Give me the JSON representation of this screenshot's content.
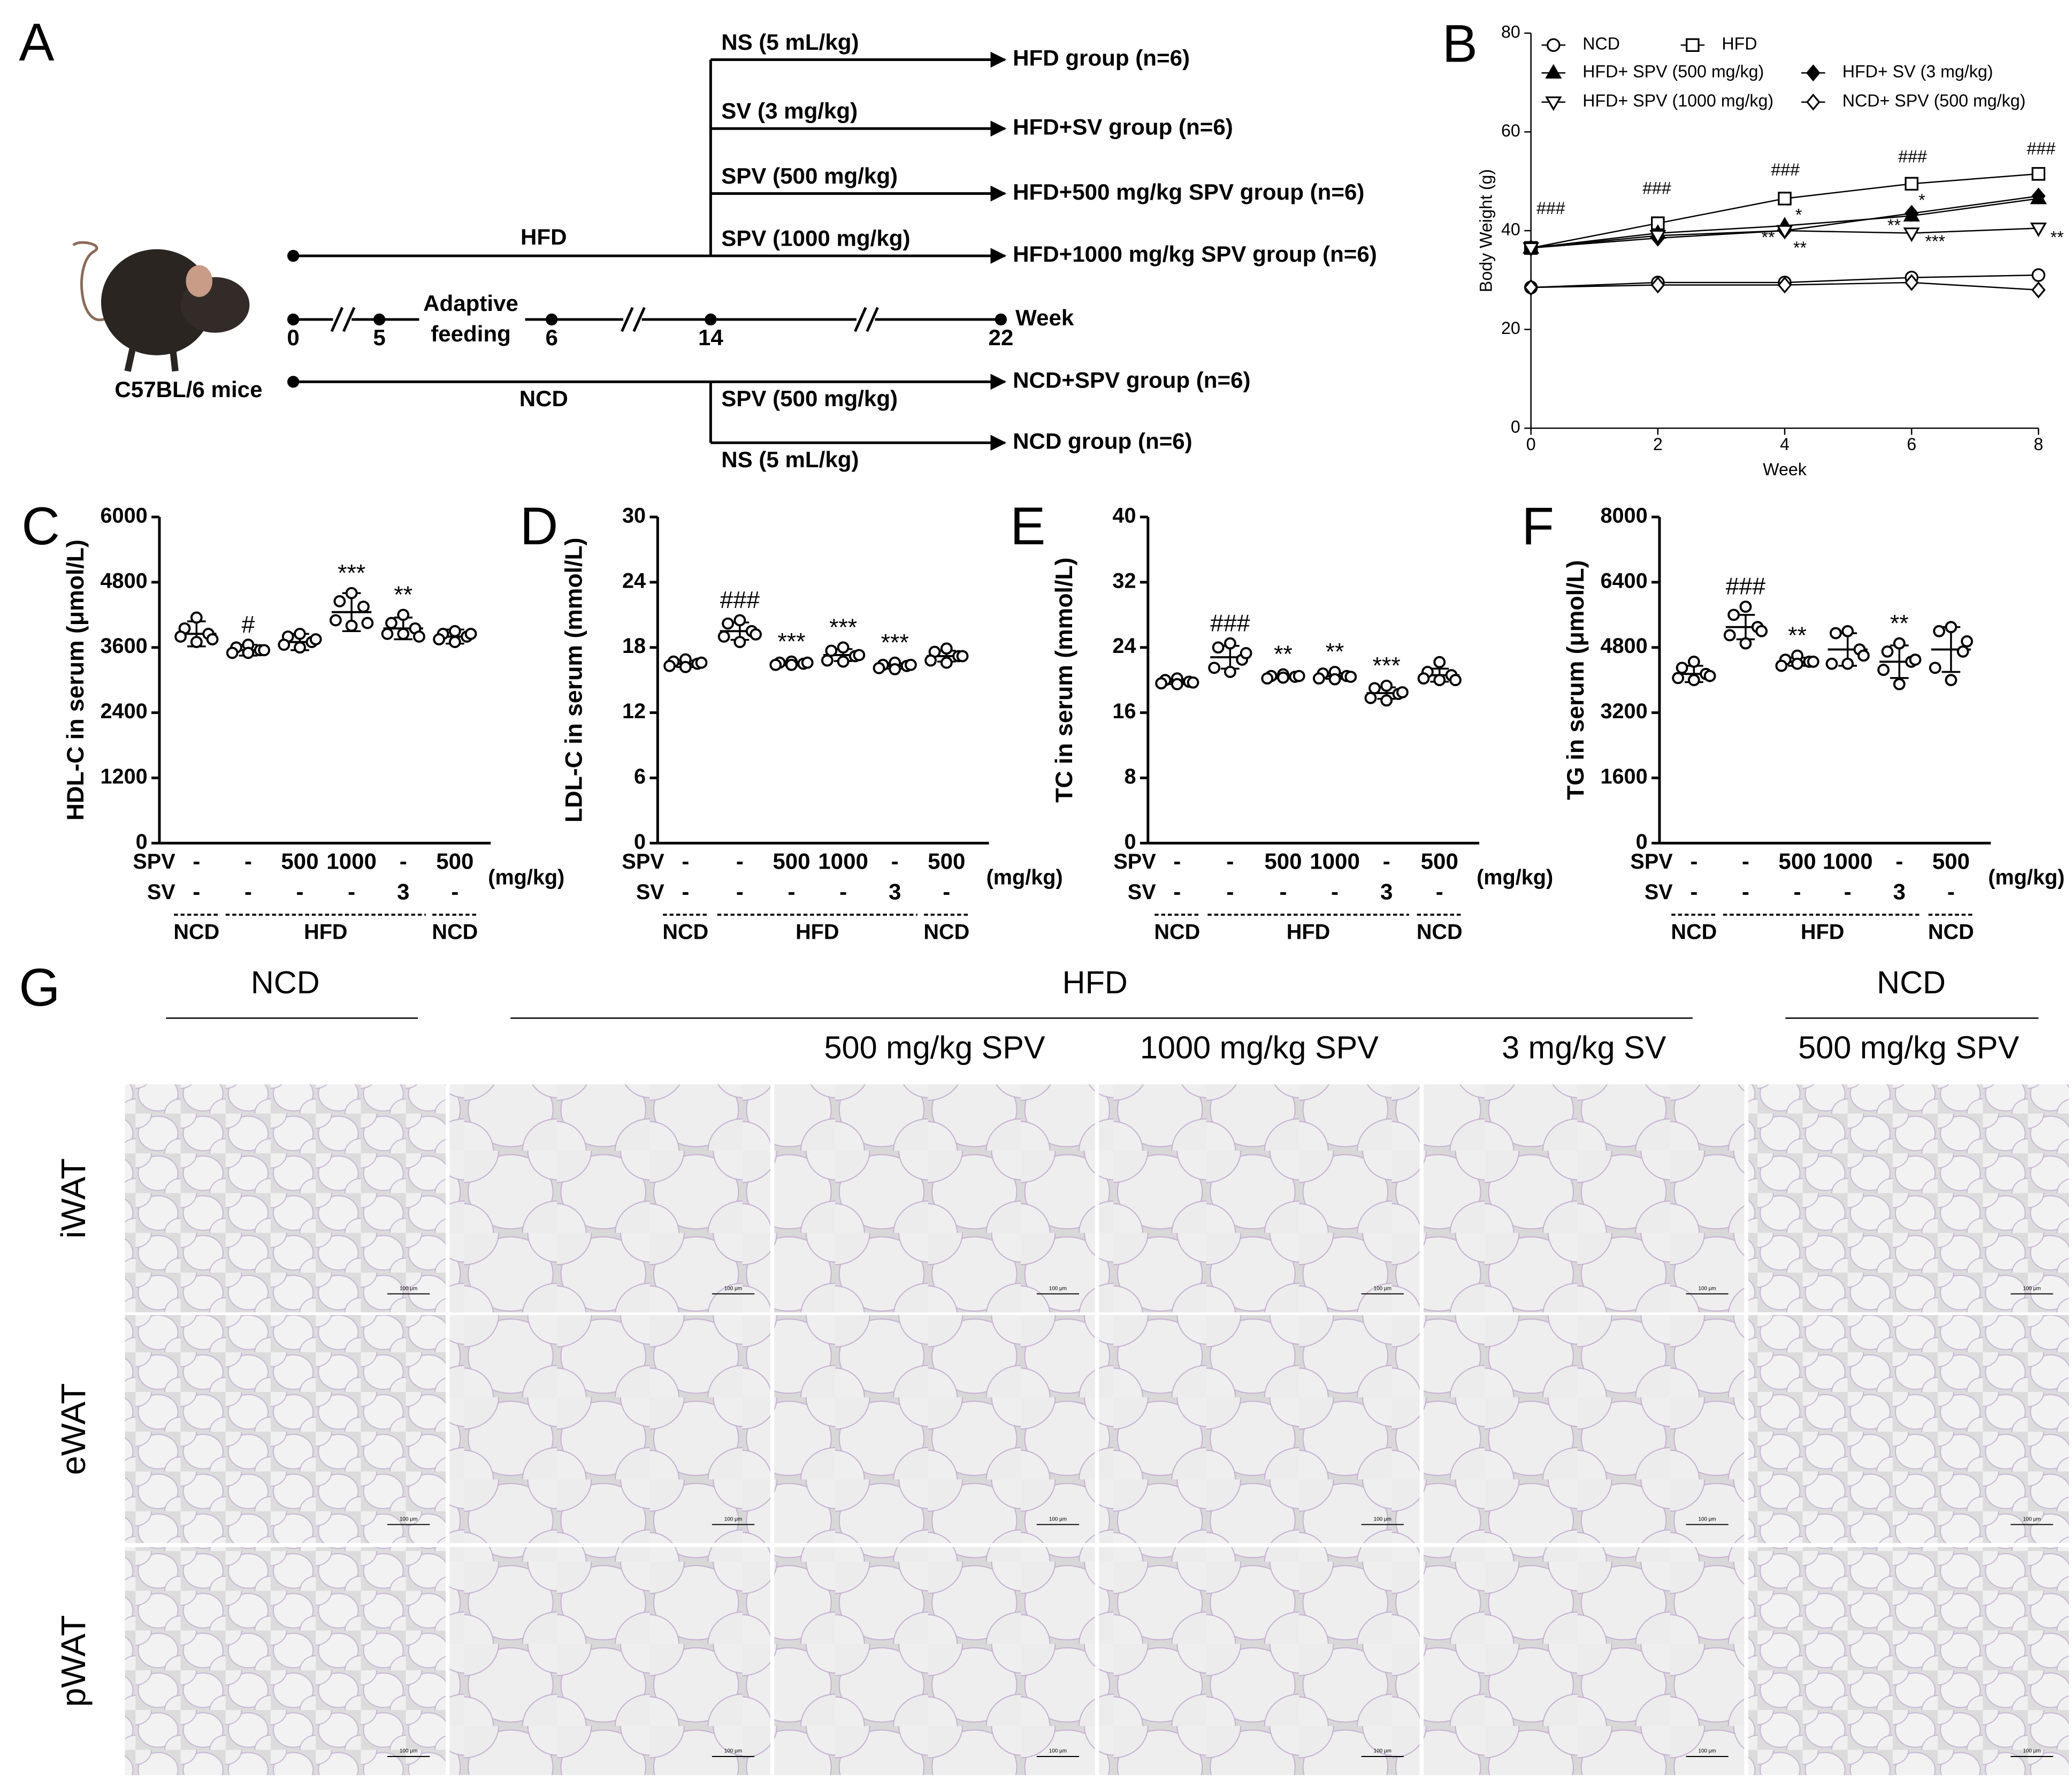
{
  "diagram": {
    "label": "A",
    "mouse": "C57BL/6 mice",
    "hfd_line": {
      "label": "HFD",
      "branches": [
        {
          "treatment": "NS (5 mL/kg)",
          "group": "HFD group (n=6)"
        },
        {
          "treatment": "SV (3 mg/kg)",
          "group": "HFD+SV group (n=6)"
        },
        {
          "treatment": "SPV (500 mg/kg)",
          "group": "HFD+500 mg/kg SPV group (n=6)"
        },
        {
          "treatment": "SPV (1000 mg/kg)",
          "group": "HFD+1000 mg/kg SPV group (n=6)"
        }
      ]
    },
    "timeline": {
      "ticks": [
        0,
        5,
        6,
        14,
        22
      ],
      "unit": "Week",
      "phase": [
        "Adaptive",
        "feeding"
      ]
    },
    "ncd_line": {
      "label": "NCD",
      "branches": [
        {
          "treatment": "SPV (500 mg/kg)",
          "group": "NCD+SPV group (n=6)"
        },
        {
          "treatment": "NS (5 mL/kg)",
          "group": "NCD group (n=6)"
        }
      ]
    }
  },
  "chart_data": [
    {
      "type": "line",
      "panel": "B",
      "y_label": "Body Weight (g)",
      "x_label": "Week",
      "x": [
        0,
        2,
        4,
        6,
        8
      ],
      "xlim": [
        0,
        8
      ],
      "xticks": [
        0,
        2,
        4,
        6,
        8
      ],
      "ylim": [
        0,
        80
      ],
      "yticks": [
        0,
        20,
        40,
        60,
        80
      ],
      "color": "#000000",
      "series": [
        {
          "name": "NCD",
          "marker": "circle",
          "filled": false,
          "values": [
            28.5,
            29.5,
            29.5,
            30.5,
            31
          ]
        },
        {
          "name": "HFD",
          "marker": "square",
          "filled": false,
          "values": [
            36.5,
            41.5,
            46.5,
            49.5,
            51.5
          ]
        },
        {
          "name": "HFD+ SPV (500 mg/kg)",
          "marker": "triangle-up",
          "filled": true,
          "values": [
            36.5,
            39.5,
            41,
            43,
            46.5
          ]
        },
        {
          "name": "HFD+ SV (3 mg/kg)",
          "marker": "diamond",
          "filled": true,
          "values": [
            36.5,
            38.5,
            40,
            43.5,
            47
          ]
        },
        {
          "name": "HFD+ SPV (1000 mg/kg)",
          "marker": "triangle-down",
          "filled": false,
          "values": [
            36.5,
            39,
            40,
            39.5,
            40.5
          ]
        },
        {
          "name": "NCD+ SPV (500 mg/kg)",
          "marker": "diamond",
          "filled": false,
          "values": [
            28.5,
            29,
            29,
            29.5,
            28
          ]
        }
      ],
      "annotations": [
        "###",
        "###",
        "###",
        "###",
        "###",
        "*",
        "**",
        "**",
        "*",
        "**",
        "***",
        "**"
      ]
    },
    {
      "type": "dot",
      "panel": "C",
      "y_label": "HDL-C in serum (μmol/L)",
      "ylim": [
        0,
        6000
      ],
      "yticks": [
        0,
        1200,
        2400,
        3600,
        4800,
        6000
      ],
      "points": [
        [
          4150,
          3950,
          3850,
          3800,
          3700,
          3750
        ],
        [
          3650,
          3600,
          3550,
          3500,
          3500,
          3550
        ],
        [
          3850,
          3800,
          3700,
          3650,
          3600,
          3750
        ],
        [
          4600,
          4450,
          4350,
          4100,
          4000,
          4050
        ],
        [
          4200,
          4050,
          3950,
          3850,
          3850,
          3800
        ],
        [
          3900,
          3850,
          3800,
          3750,
          3700,
          3850
        ]
      ],
      "means": [
        3850,
        3550,
        3700,
        4250,
        3950,
        3800
      ],
      "sds": [
        230,
        100,
        150,
        350,
        200,
        130
      ],
      "significance": [
        null,
        "#",
        null,
        "***",
        "**",
        null
      ],
      "spv_label": "SPV",
      "spv": [
        "-",
        "-",
        500,
        1000,
        "-",
        500
      ],
      "sv_label": "SV",
      "sv": [
        "-",
        "-",
        "-",
        "-",
        3,
        "-"
      ],
      "unit": "(mg/kg)",
      "groups": [
        "NCD",
        "HFD",
        "NCD"
      ]
    },
    {
      "type": "dot",
      "panel": "D",
      "y_label": "LDL-C in serum (mmol/L)",
      "ylim": [
        0,
        30
      ],
      "yticks": [
        0,
        6,
        12,
        18,
        24,
        30
      ],
      "points": [
        [
          16.9,
          16.7,
          16.5,
          16.3,
          16.2,
          16.6
        ],
        [
          20.5,
          20.2,
          19.5,
          19.0,
          18.5,
          19.2
        ],
        [
          16.7,
          16.6,
          16.5,
          16.4,
          16.4,
          16.6
        ],
        [
          18.0,
          17.7,
          17.2,
          16.8,
          16.7,
          17.3
        ],
        [
          16.6,
          16.4,
          16.3,
          16.1,
          16.0,
          16.4
        ],
        [
          17.9,
          17.6,
          17.2,
          16.8,
          16.6,
          17.2
        ]
      ],
      "means": [
        16.5,
        19.5,
        16.5,
        17.3,
        16.3,
        17.2
      ],
      "sds": [
        0.3,
        0.8,
        0.15,
        0.55,
        0.25,
        0.5
      ],
      "significance": [
        null,
        "###",
        "***",
        "***",
        "***",
        null
      ],
      "spv_label": "SPV",
      "spv": [
        "-",
        "-",
        500,
        1000,
        "-",
        500
      ],
      "sv_label": "SV",
      "sv": [
        "-",
        "-",
        "-",
        "-",
        3,
        "-"
      ],
      "unit": "(mg/kg)",
      "groups": [
        "NCD",
        "HFD",
        "NCD"
      ]
    },
    {
      "type": "dot",
      "panel": "E",
      "y_label": "TC in serum (mmol/L)",
      "ylim": [
        0,
        40
      ],
      "yticks": [
        0,
        8,
        16,
        24,
        32,
        40
      ],
      "points": [
        [
          20.2,
          20.0,
          19.8,
          19.6,
          19.5,
          19.7
        ],
        [
          24.5,
          24.0,
          22.5,
          21.5,
          21.0,
          23.3
        ],
        [
          20.7,
          20.5,
          20.4,
          20.2,
          20.3,
          20.5
        ],
        [
          21.0,
          20.8,
          20.5,
          20.2,
          20.1,
          20.4
        ],
        [
          19.3,
          19.0,
          18.3,
          17.8,
          17.5,
          18.5
        ],
        [
          22.2,
          21.0,
          20.6,
          20.2,
          20.0,
          20.0
        ]
      ],
      "means": [
        19.8,
        22.8,
        20.4,
        20.5,
        18.4,
        20.6
      ],
      "sds": [
        0.3,
        1.4,
        0.2,
        0.35,
        0.7,
        0.8
      ],
      "significance": [
        null,
        "###",
        "**",
        "**",
        "***",
        null
      ],
      "spv_label": "SPV",
      "spv": [
        "-",
        "-",
        500,
        1000,
        "-",
        500
      ],
      "sv_label": "SV",
      "sv": [
        "-",
        "-",
        "-",
        "-",
        3,
        "-"
      ],
      "unit": "(mg/kg)",
      "groups": [
        "NCD",
        "HFD",
        "NCD"
      ]
    },
    {
      "type": "dot",
      "panel": "F",
      "y_label": "TG in serum (μmol/L)",
      "ylim": [
        0,
        8000
      ],
      "yticks": [
        0,
        1600,
        3200,
        4800,
        6400,
        8000
      ],
      "points": [
        [
          4450,
          4300,
          4150,
          4050,
          4000,
          4100
        ],
        [
          5800,
          5600,
          5300,
          5100,
          4900,
          5200
        ],
        [
          4600,
          4500,
          4450,
          4350,
          4400,
          4450
        ],
        [
          5200,
          5150,
          4750,
          4400,
          4400,
          4600
        ],
        [
          4900,
          4700,
          4450,
          4250,
          3900,
          4500
        ],
        [
          5300,
          5200,
          4700,
          4300,
          4000,
          4950
        ]
      ],
      "means": [
        4150,
        5300,
        4450,
        4750,
        4450,
        4750
      ],
      "sds": [
        200,
        300,
        100,
        400,
        400,
        550
      ],
      "significance": [
        null,
        "###",
        "**",
        null,
        "**",
        null
      ],
      "spv_label": "SPV",
      "spv": [
        "-",
        "-",
        500,
        1000,
        "-",
        500
      ],
      "sv_label": "SV",
      "sv": [
        "-",
        "-",
        "-",
        "-",
        3,
        "-"
      ],
      "unit": "(mg/kg)",
      "groups": [
        "NCD",
        "HFD",
        "NCD"
      ]
    }
  ],
  "histology": {
    "label": "G",
    "groups": [
      "NCD",
      "HFD",
      "NCD"
    ],
    "column_titles": [
      null,
      null,
      "500 mg/kg SPV",
      "1000 mg/kg SPV",
      "3 mg/kg SV",
      "500 mg/kg SPV"
    ],
    "rows": [
      "iWAT",
      "eWAT",
      "pWAT"
    ],
    "scale_bar": "100 μm"
  }
}
